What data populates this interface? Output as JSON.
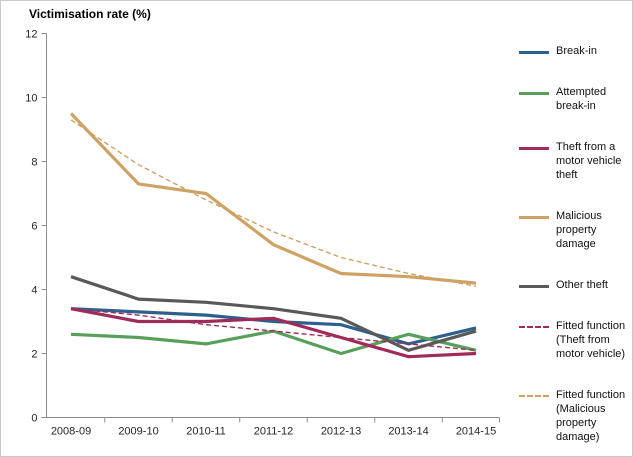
{
  "title": "Victimisation rate (%)",
  "chart_data": {
    "type": "line",
    "title": "Victimisation rate (%)",
    "xlabel": "",
    "ylabel": "Victimisation rate (%)",
    "ylim": [
      0,
      12
    ],
    "ytick_step": 2,
    "grid": false,
    "legend_position": "right",
    "categories": [
      "2008-09",
      "2009-10",
      "2010-11",
      "2011-12",
      "2012-13",
      "2013-14",
      "2014-15"
    ],
    "series": [
      {
        "name": "Break-in",
        "color": "#2e608c",
        "style": "solid",
        "values": [
          3.4,
          3.3,
          3.2,
          3.0,
          2.9,
          2.3,
          2.8
        ]
      },
      {
        "name": "Attempted break-in",
        "color": "#57a05a",
        "style": "solid",
        "values": [
          2.6,
          2.5,
          2.3,
          2.7,
          2.0,
          2.6,
          2.1
        ]
      },
      {
        "name": "Theft from a motor vehicle theft",
        "color": "#a02b5a",
        "style": "solid",
        "values": [
          3.4,
          3.0,
          3.0,
          3.1,
          2.5,
          1.9,
          2.0
        ]
      },
      {
        "name": "Malicious property damage",
        "color": "#cfa264",
        "style": "solid",
        "values": [
          9.5,
          7.3,
          7.0,
          5.4,
          4.5,
          4.4,
          4.2
        ]
      },
      {
        "name": "Other theft",
        "color": "#595959",
        "style": "solid",
        "values": [
          4.4,
          3.7,
          3.6,
          3.4,
          3.1,
          2.1,
          2.7
        ]
      },
      {
        "name": "Fitted function (Theft from motor vehicle)",
        "color": "#a02b5a",
        "style": "dashed",
        "values": [
          3.4,
          3.2,
          2.9,
          2.7,
          2.5,
          2.3,
          2.1
        ]
      },
      {
        "name": "Fitted function (Malicious property damage)",
        "color": "#cfa264",
        "style": "dashed",
        "values": [
          9.3,
          7.9,
          6.8,
          5.8,
          5.0,
          4.5,
          4.1
        ]
      }
    ],
    "axis_color": "#8c8c8c"
  }
}
